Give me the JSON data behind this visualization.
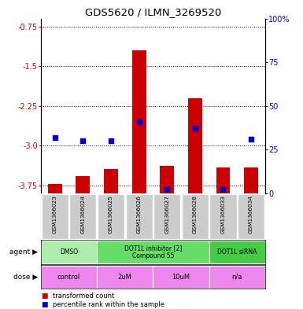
{
  "title": "GDS5620 / ILMN_3269520",
  "samples": [
    "GSM1366023",
    "GSM1366024",
    "GSM1366025",
    "GSM1366026",
    "GSM1366027",
    "GSM1366028",
    "GSM1366033",
    "GSM1366034"
  ],
  "bar_values": [
    -3.72,
    -3.58,
    -3.45,
    -1.2,
    -3.38,
    -2.1,
    -3.42,
    -3.42
  ],
  "percentile_values": [
    32,
    30,
    30,
    41,
    2,
    37,
    2,
    31
  ],
  "ylim_left": [
    -3.9,
    -0.6
  ],
  "ylim_right": [
    0,
    100
  ],
  "yticks_left": [
    -3.75,
    -3.0,
    -2.25,
    -1.5,
    -0.75
  ],
  "yticks_right": [
    0,
    25,
    50,
    75,
    100
  ],
  "agent_groups": [
    {
      "label": "DMSO",
      "span": [
        0,
        2
      ],
      "color": "#aaeeaa"
    },
    {
      "label": "DOT1L inhibitor [2]\nCompound 55",
      "span": [
        2,
        6
      ],
      "color": "#66dd66"
    },
    {
      "label": "DOT1L siRNA",
      "span": [
        6,
        8
      ],
      "color": "#44cc44"
    }
  ],
  "dose_groups": [
    {
      "label": "control",
      "span": [
        0,
        2
      ],
      "color": "#ee88ee"
    },
    {
      "label": "2uM",
      "span": [
        2,
        4
      ],
      "color": "#ee88ee"
    },
    {
      "label": "10uM",
      "span": [
        4,
        6
      ],
      "color": "#ee88ee"
    },
    {
      "label": "n/a",
      "span": [
        6,
        8
      ],
      "color": "#ee88ee"
    }
  ],
  "bar_color": "#cc0000",
  "dot_color": "#0000cc",
  "left_tick_color": "#cc0000",
  "right_tick_color": "#0000cc",
  "sample_bg_color": "#cccccc",
  "legend_red": "transformed count",
  "legend_blue": "percentile rank within the sample",
  "fig_width": 3.85,
  "fig_height": 3.93,
  "dpi": 100
}
